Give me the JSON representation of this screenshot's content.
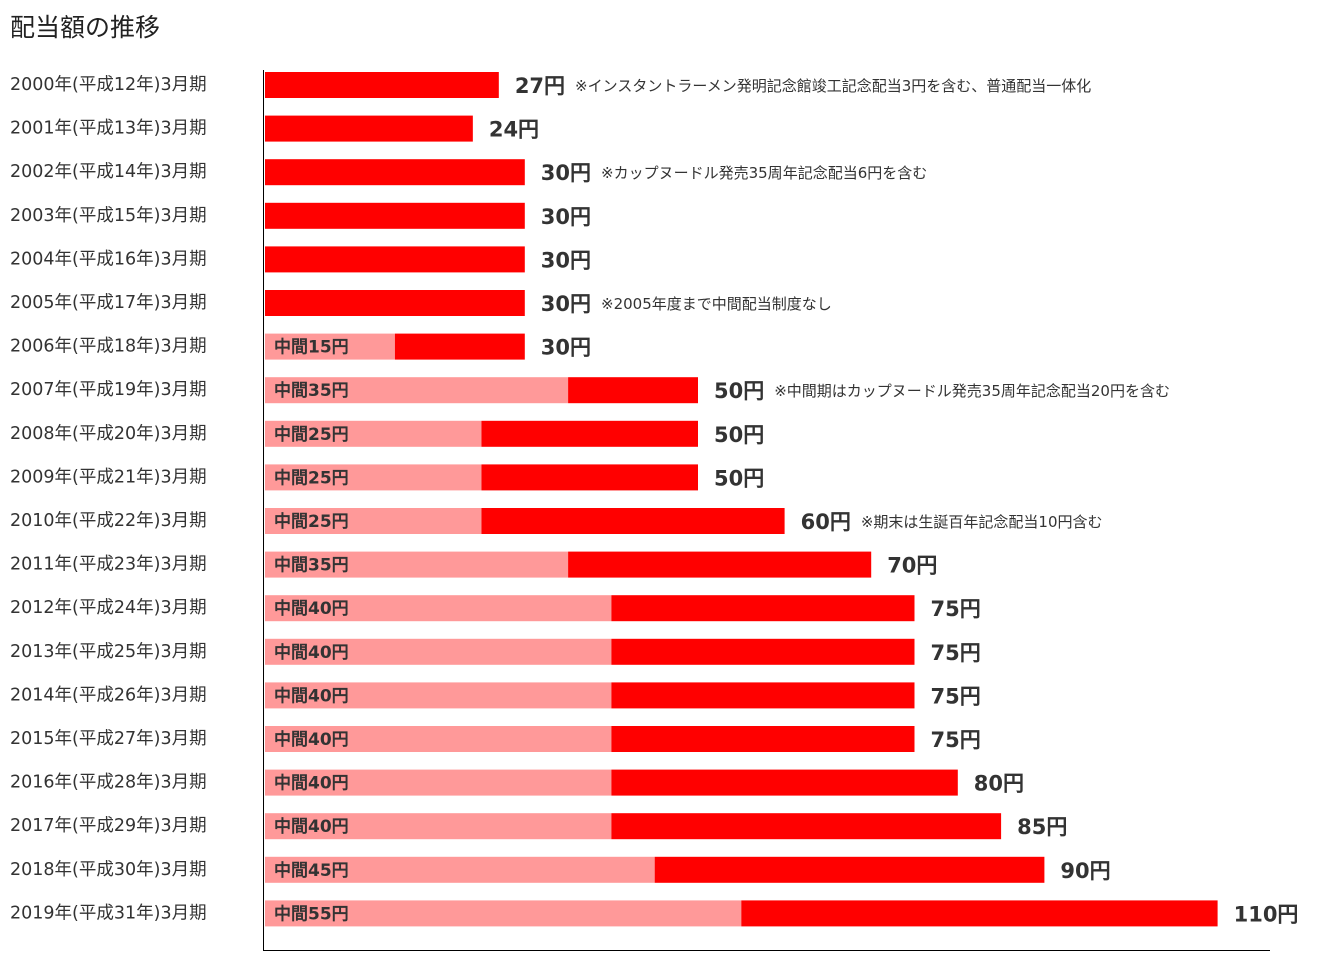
{
  "chart_data": {
    "type": "bar",
    "orientation": "horizontal",
    "stacked": true,
    "title": "配当額の推移",
    "categories": [
      "2000年(平成12年)3月期",
      "2001年(平成13年)3月期",
      "2002年(平成14年)3月期",
      "2003年(平成15年)3月期",
      "2004年(平成16年)3月期",
      "2005年(平成17年)3月期",
      "2006年(平成18年)3月期",
      "2007年(平成19年)3月期",
      "2008年(平成20年)3月期",
      "2009年(平成21年)3月期",
      "2010年(平成22年)3月期",
      "2011年(平成23年)3月期",
      "2012年(平成24年)3月期",
      "2013年(平成25年)3月期",
      "2014年(平成26年)3月期",
      "2015年(平成27年)3月期",
      "2016年(平成28年)3月期",
      "2017年(平成29年)3月期",
      "2018年(平成30年)3月期",
      "2019年(平成31年)3月期"
    ],
    "series": [
      {
        "color": "#ff9999",
        "values": [
          0,
          0,
          0,
          0,
          0,
          0,
          15,
          35,
          25,
          25,
          25,
          35,
          40,
          40,
          40,
          40,
          40,
          40,
          45,
          55
        ]
      },
      {
        "color": "#ff0000",
        "values": [
          27,
          24,
          30,
          30,
          30,
          30,
          15,
          15,
          25,
          25,
          35,
          35,
          35,
          35,
          35,
          35,
          40,
          45,
          45,
          55
        ]
      }
    ],
    "inner_labels": [
      "",
      "",
      "",
      "",
      "",
      "",
      "中間15円",
      "中間35円",
      "中間25円",
      "中間25円",
      "中間25円",
      "中間35円",
      "中間40円",
      "中間40円",
      "中間40円",
      "中間40円",
      "中間40円",
      "中間40円",
      "中間45円",
      "中間55円"
    ],
    "total_labels": [
      "27円",
      "24円",
      "30円",
      "30円",
      "30円",
      "30円",
      "30円",
      "50円",
      "50円",
      "50円",
      "60円",
      "70円",
      "75円",
      "75円",
      "75円",
      "75円",
      "80円",
      "85円",
      "90円",
      "110円"
    ],
    "notes": [
      "※インスタントラーメン発明記念館竣工記念配当3円を含む、普通配当一体化",
      "",
      "※カップヌードル発売35周年記念配当6円を含む",
      "",
      "",
      "※2005年度まで中間配当制度なし",
      "",
      "※中間期はカップヌードル発売35周年記念配当20円を含む",
      "",
      "",
      "※期末は生誕百年記念配当10円含む",
      "",
      "",
      "",
      "",
      "",
      "",
      "",
      "",
      ""
    ],
    "xlim": [
      0,
      116
    ],
    "grid": false,
    "legend": "none"
  }
}
